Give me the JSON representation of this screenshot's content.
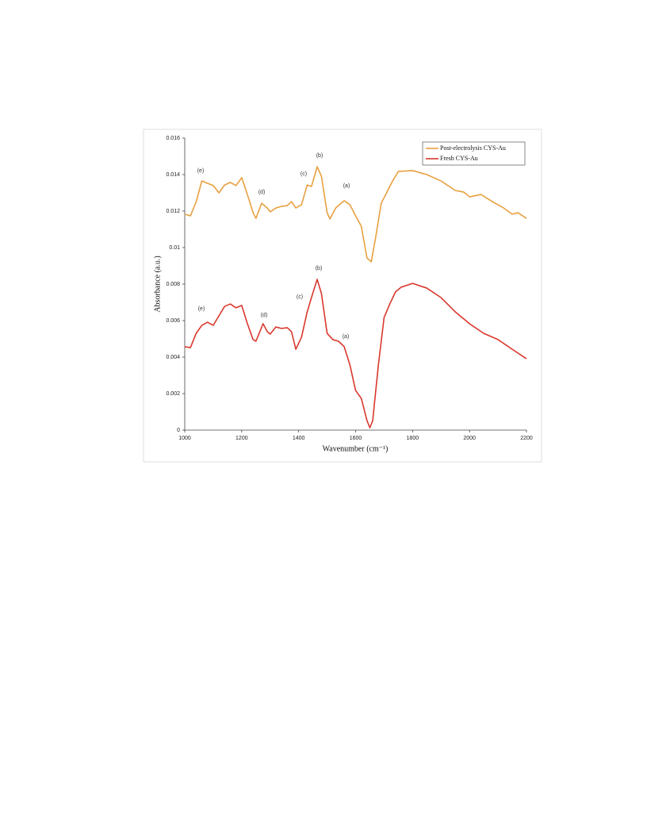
{
  "chart_data": {
    "type": "line",
    "xlabel": "Wavenumber (cm⁻¹)",
    "ylabel": "Absorbance (a.u.)",
    "xlim": [
      1000,
      2200
    ],
    "xticks": [
      1000,
      1200,
      1400,
      1600,
      1800,
      2000,
      2200
    ],
    "ylim": [
      0,
      0.016
    ],
    "yticks": [
      0,
      0.002,
      0.004,
      0.006,
      0.008,
      0.01,
      0.012,
      0.014,
      0.016
    ],
    "grid": false,
    "legend": "upper right",
    "annotations": [
      "(e)",
      "(d)",
      "(c)",
      "(b)",
      "(a)",
      "(e)",
      "(d)",
      "(c)",
      "(b)",
      "(a)"
    ],
    "series": [
      {
        "name": "Post-electrolysis CYS-Au",
        "color": "#e8a040",
        "x": [
          1000,
          1020,
          1040,
          1060,
          1080,
          1100,
          1120,
          1140,
          1160,
          1180,
          1200,
          1220,
          1240,
          1250,
          1270,
          1290,
          1300,
          1320,
          1340,
          1360,
          1375,
          1390,
          1410,
          1430,
          1445,
          1465,
          1480,
          1500,
          1510,
          1530,
          1560,
          1580,
          1600,
          1620,
          1640,
          1655,
          1670,
          1690,
          1710,
          1730,
          1750,
          1800,
          1850,
          1900,
          1950,
          1980,
          2000,
          2040,
          2080,
          2120,
          2150,
          2170,
          2200
        ],
        "values": [
          0.01183,
          0.01174,
          0.0125,
          0.01365,
          0.01352,
          0.0134,
          0.013,
          0.01343,
          0.01357,
          0.0134,
          0.01383,
          0.01291,
          0.01191,
          0.0116,
          0.01243,
          0.01217,
          0.01196,
          0.01217,
          0.01226,
          0.0123,
          0.01252,
          0.01217,
          0.01235,
          0.01343,
          0.01335,
          0.01443,
          0.01391,
          0.01191,
          0.01157,
          0.01217,
          0.01257,
          0.01235,
          0.01174,
          0.01117,
          0.00943,
          0.00922,
          0.01052,
          0.01243,
          0.01304,
          0.01365,
          0.01417,
          0.01422,
          0.014,
          0.01365,
          0.01313,
          0.01304,
          0.01278,
          0.01291,
          0.01252,
          0.01217,
          0.01183,
          0.01191,
          0.0116
        ]
      },
      {
        "name": "Fresh CYS-Au",
        "color": "#d9382c",
        "x": [
          1000,
          1020,
          1040,
          1060,
          1080,
          1100,
          1120,
          1140,
          1160,
          1180,
          1200,
          1220,
          1240,
          1250,
          1275,
          1290,
          1300,
          1320,
          1340,
          1360,
          1375,
          1390,
          1410,
          1430,
          1445,
          1465,
          1480,
          1500,
          1520,
          1540,
          1560,
          1580,
          1600,
          1620,
          1640,
          1650,
          1660,
          1680,
          1700,
          1720,
          1740,
          1760,
          1800,
          1850,
          1900,
          1950,
          2000,
          2050,
          2100,
          2150,
          2200
        ],
        "values": [
          0.00457,
          0.00452,
          0.0053,
          0.00574,
          0.00591,
          0.00574,
          0.00626,
          0.00678,
          0.00691,
          0.0067,
          0.00683,
          0.00583,
          0.00496,
          0.00487,
          0.00583,
          0.00539,
          0.00526,
          0.00565,
          0.00557,
          0.00561,
          0.00539,
          0.00443,
          0.00509,
          0.00648,
          0.00726,
          0.00826,
          0.00748,
          0.0053,
          0.00496,
          0.00487,
          0.00457,
          0.00357,
          0.00217,
          0.00174,
          0.00052,
          0.00013,
          0.00052,
          0.00357,
          0.00617,
          0.00691,
          0.00757,
          0.00783,
          0.00804,
          0.00778,
          0.00726,
          0.00648,
          0.00583,
          0.0053,
          0.00496,
          0.00443,
          0.00391
        ]
      }
    ]
  }
}
